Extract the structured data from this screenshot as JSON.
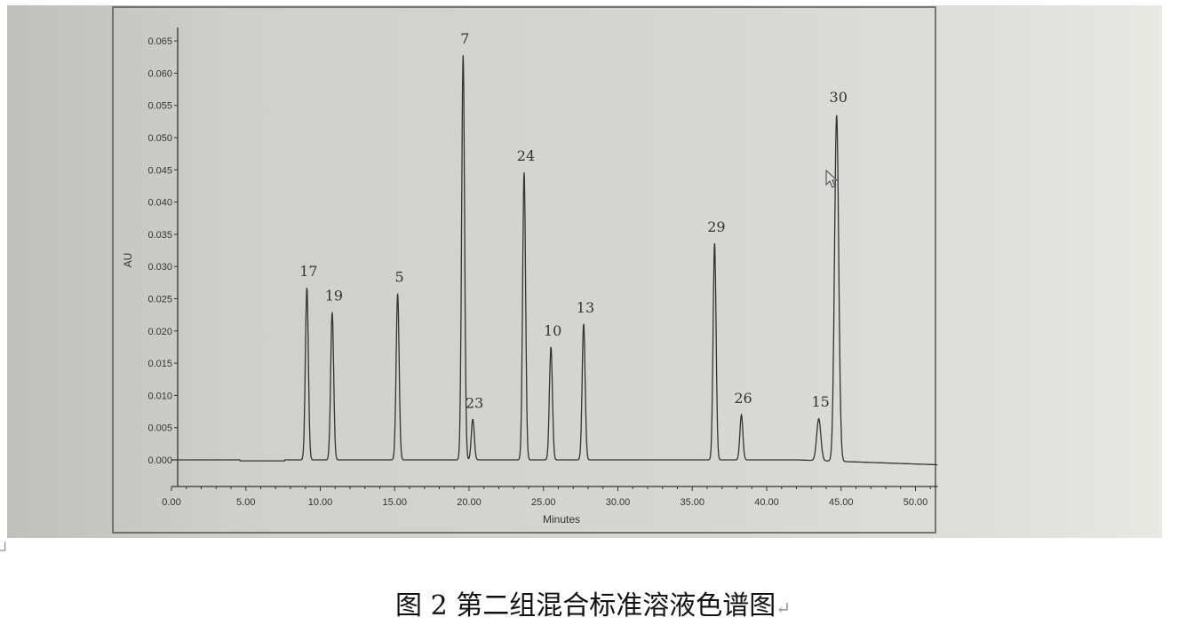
{
  "chart_data": {
    "type": "line",
    "title": "",
    "xlabel": "Minutes",
    "ylabel": "AU",
    "xlim": [
      0,
      51.5
    ],
    "ylim": [
      -0.005,
      0.066
    ],
    "x_ticks": [
      "0.00",
      "5.00",
      "10.00",
      "15.00",
      "20.00",
      "25.00",
      "30.00",
      "35.00",
      "40.00",
      "45.00",
      "50.00"
    ],
    "y_ticks": [
      "0.000",
      "0.005",
      "0.010",
      "0.015",
      "0.020",
      "0.025",
      "0.030",
      "0.035",
      "0.040",
      "0.045",
      "0.050",
      "0.055",
      "0.060",
      "0.065"
    ],
    "grid": false,
    "peaks": [
      {
        "label": "17",
        "time": 9.1,
        "height": 0.0267
      },
      {
        "label": "19",
        "time": 10.8,
        "height": 0.0229
      },
      {
        "label": "5",
        "time": 15.2,
        "height": 0.0258
      },
      {
        "label": "7",
        "time": 19.6,
        "height": 0.0628
      },
      {
        "label": "23",
        "time": 20.25,
        "height": 0.0063
      },
      {
        "label": "24",
        "time": 23.7,
        "height": 0.0446
      },
      {
        "label": "10",
        "time": 25.5,
        "height": 0.0175
      },
      {
        "label": "13",
        "time": 27.7,
        "height": 0.0211
      },
      {
        "label": "29",
        "time": 36.5,
        "height": 0.0336
      },
      {
        "label": "26",
        "time": 38.3,
        "height": 0.007
      },
      {
        "label": "15",
        "time": 43.5,
        "height": 0.0065
      },
      {
        "label": "30",
        "time": 44.7,
        "height": 0.0537
      }
    ],
    "line_color": "#333333"
  },
  "caption": {
    "text": "图 2 第二组混合标准溶液色谱图",
    "return_mark": "↵",
    "corner_mark": "┘"
  }
}
